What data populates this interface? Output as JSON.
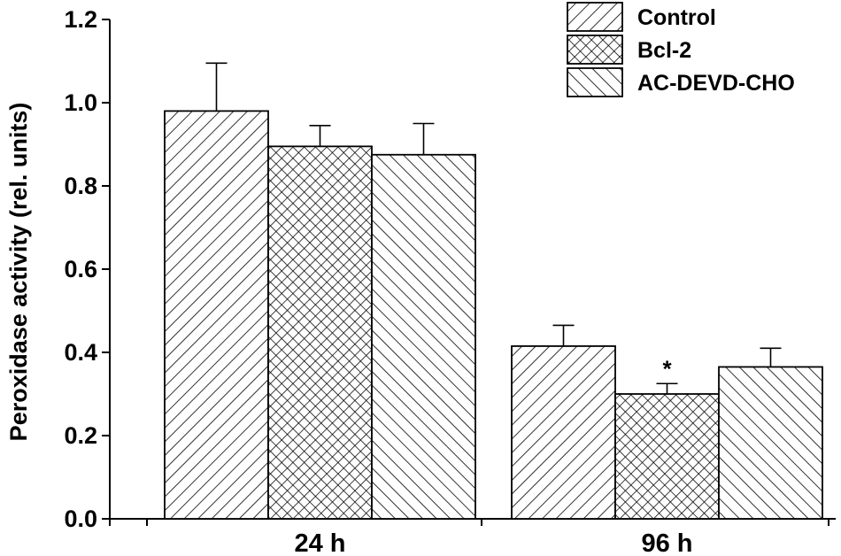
{
  "chart_data": {
    "type": "bar",
    "categories": [
      "24 h",
      "96 h"
    ],
    "series": [
      {
        "name": "Control",
        "values": [
          0.98,
          0.415
        ],
        "errors": [
          0.115,
          0.05
        ],
        "pattern": "diag-right"
      },
      {
        "name": "Bcl-2",
        "values": [
          0.895,
          0.3
        ],
        "errors": [
          0.05,
          0.025
        ],
        "pattern": "crosshatch"
      },
      {
        "name": "AC-DEVD-CHO",
        "values": [
          0.875,
          0.365
        ],
        "errors": [
          0.075,
          0.045
        ],
        "pattern": "diag-left"
      }
    ],
    "ylabel": "Peroxidase activity (rel. units)",
    "xlabel": "",
    "ylim": [
      0,
      1.2
    ],
    "yticks": [
      "0.0",
      "0.2",
      "0.4",
      "0.6",
      "0.8",
      "1.0",
      "1.2"
    ],
    "grid": false,
    "legend_position": "top-right",
    "annotations": [
      {
        "text": "*",
        "category": "96 h",
        "series": "Bcl-2"
      }
    ],
    "colors": {
      "bar_fill": "#ffffff",
      "stroke": "#000000"
    }
  }
}
